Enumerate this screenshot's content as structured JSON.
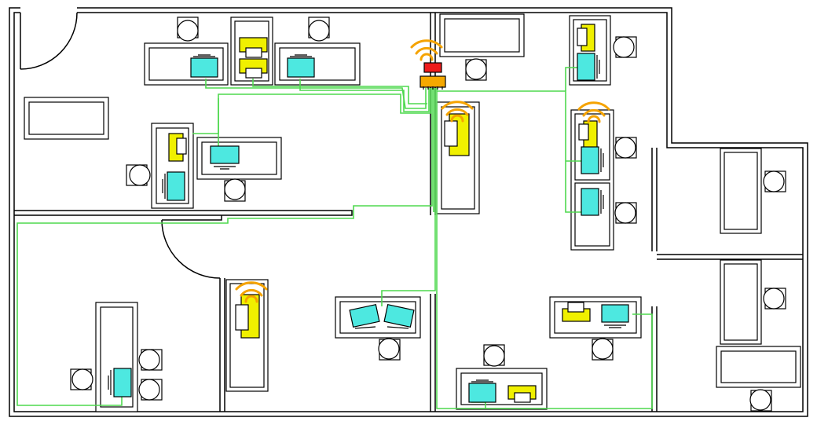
{
  "colors": {
    "background": "#ffffff",
    "wall": "#000000",
    "cable": "#4fd84f",
    "monitor": "#4de8e0",
    "printer": "#f0f000",
    "router": "#ee1c1c",
    "switch": "#f5a800",
    "wifi": "#f5a300",
    "chair": "#ffffff"
  },
  "legend": [],
  "network_devices": [
    {
      "name": "router",
      "icon": "router-icon"
    },
    {
      "name": "switch",
      "icon": "network-switch-icon"
    }
  ],
  "wireless_access_points": 4,
  "computers": 14,
  "printers": 8
}
